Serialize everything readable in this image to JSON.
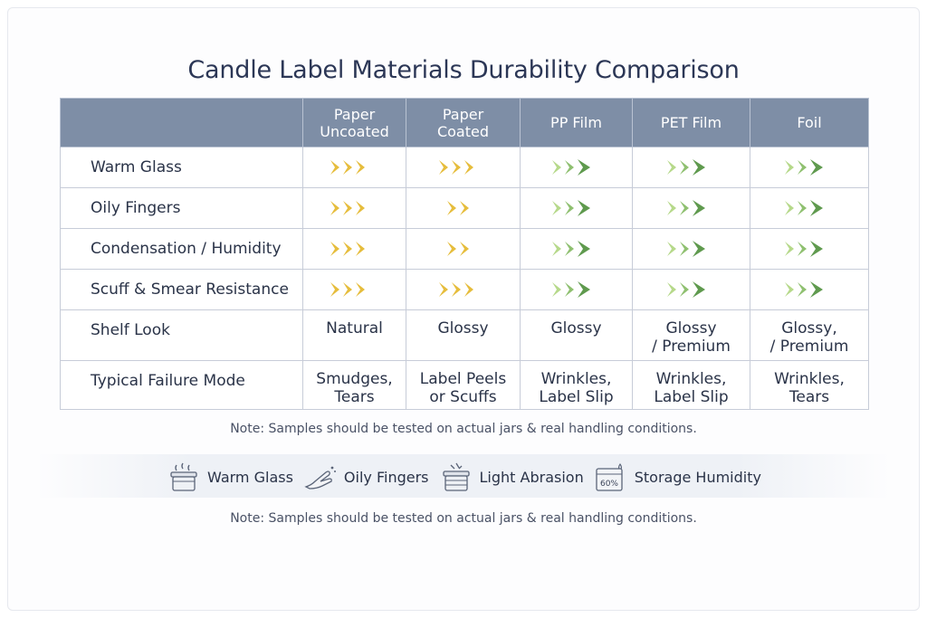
{
  "title": "Candle Label Materials Durability Comparison",
  "columns": [
    "",
    "Paper Uncoated",
    "Paper Coated",
    "PP Film",
    "PET Film",
    "Foil"
  ],
  "columns_display": [
    [
      "Paper",
      "Uncoated"
    ],
    [
      "Paper",
      "Coated"
    ],
    [
      "PP Film"
    ],
    [
      "PET Film"
    ],
    [
      "Foil"
    ]
  ],
  "arrow_colors": {
    "yellow": "#e6bd3c",
    "green": "#5f9a4e",
    "light_green": "#b6d98a"
  },
  "rows": [
    {
      "label": "Warm Glass",
      "ratings": [
        "yellow-3",
        "yellow-3",
        "green-3",
        "green-3",
        "green-3"
      ]
    },
    {
      "label": "Oily Fingers",
      "ratings": [
        "yellow-3",
        "yellow-2",
        "green-3",
        "green-3",
        "green-3"
      ]
    },
    {
      "label": "Condensation / Humidity",
      "ratings": [
        "yellow-3",
        "yellow-2",
        "green-3",
        "green-3",
        "green-3"
      ]
    },
    {
      "label": "Scuff & Smear Resistance",
      "ratings": [
        "yellow-3",
        "yellow-3",
        "green-3",
        "green-3",
        "green-3"
      ]
    }
  ],
  "shelf_look": {
    "label": "Shelf Look",
    "values": [
      [
        "Natural"
      ],
      [
        "Glossy"
      ],
      [
        "Glossy"
      ],
      [
        "Glossy",
        "/ Premium"
      ],
      [
        "Glossy,",
        "/ Premium"
      ]
    ]
  },
  "failure_mode": {
    "label": "Typical Failure Mode",
    "values": [
      [
        "Smudges,",
        "Tears"
      ],
      [
        "Label Peels",
        "or Scuffs"
      ],
      [
        "Wrinkles,",
        "Label Slip"
      ],
      [
        "Wrinkles,",
        "Label Slip"
      ],
      [
        "Wrinkles,",
        "Tears"
      ]
    ]
  },
  "note_top": "Note: Samples should be tested on actual jars & real handling conditions.",
  "legend": [
    {
      "icon": "warm-jar-icon",
      "label": "Warm Glass"
    },
    {
      "icon": "finger-icon",
      "label": "Oily Fingers"
    },
    {
      "icon": "abrasion-jar-icon",
      "label": "Light Abrasion"
    },
    {
      "icon": "humidity-box-icon",
      "label": "Storage Humidity",
      "icon_text": "60%"
    }
  ],
  "note_bottom": "Note: Samples should be tested on actual jars & real handling conditions."
}
